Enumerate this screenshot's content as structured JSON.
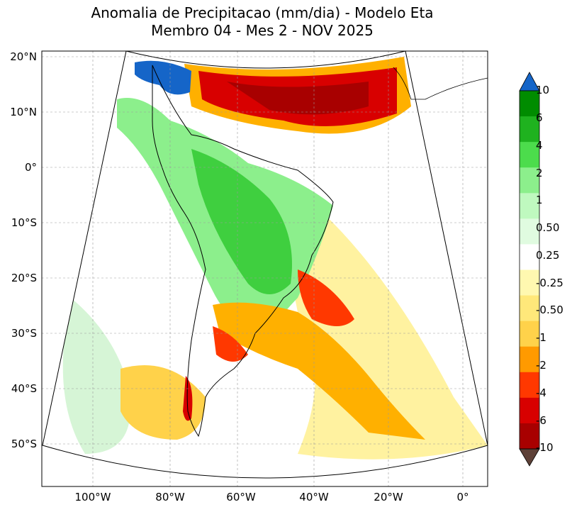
{
  "title_line1": "Anomalia de Precipitacao (mm/dia) - Modelo Eta",
  "title_line2": "Membro 04 - Mes 2 - NOV 2025",
  "lat_labels": [
    "20°N",
    "10°N",
    "0°",
    "10°S",
    "20°S",
    "30°S",
    "40°S",
    "50°S"
  ],
  "lon_labels": [
    "100°W",
    "80°W",
    "60°W",
    "40°W",
    "20°W",
    "0°"
  ],
  "colorbar": {
    "labels": [
      "10",
      "6",
      "4",
      "2",
      "1",
      "0.50",
      "0.25",
      "-0.25",
      "-0.50",
      "-1",
      "-2",
      "-4",
      "-6",
      "-10"
    ],
    "over_color": "#1565c8",
    "under_color": "#5d4037",
    "colors": [
      "#008c00",
      "#1fb21f",
      "#4cdc4c",
      "#8cef8c",
      "#bff9bf",
      "#e0fbe0",
      "#ffffff",
      "#fff8b0",
      "#ffe87a",
      "#ffd24a",
      "#ff9a00",
      "#ff3800",
      "#d80000",
      "#a80000"
    ]
  },
  "palette": {
    "ocean_white": "#ffffff",
    "dry_orange": "#ffb000",
    "dry_red": "#d80000",
    "wet_green": "#3fcf3f",
    "light_green": "#bff2bf",
    "light_yellow": "#fff2a0",
    "wet_blue": "#1565c8"
  }
}
